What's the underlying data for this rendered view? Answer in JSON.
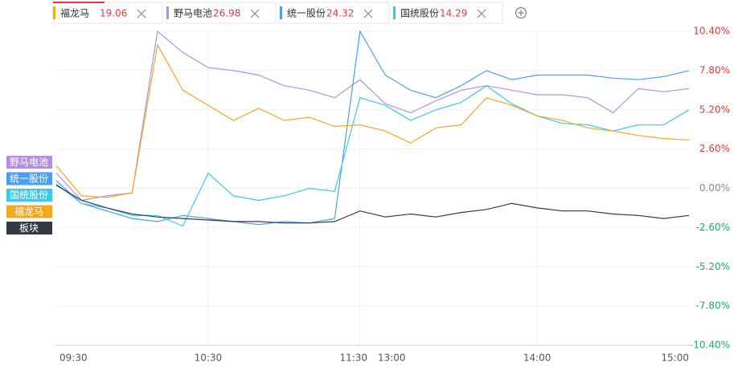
{
  "chart_data": {
    "type": "line",
    "categories": [
      "09:30",
      null,
      null,
      null,
      null,
      null,
      "10:30",
      null,
      null,
      null,
      null,
      null,
      "11:30",
      "13:00",
      null,
      null,
      null,
      null,
      null,
      "14:00",
      null,
      null,
      null,
      null,
      null,
      "15:00"
    ],
    "series": [
      {
        "name": "野马电池",
        "color": "#b48fe0",
        "price": 26.98,
        "values": [
          1.0,
          -0.8,
          -0.5,
          -0.3,
          10.4,
          9.0,
          8.0,
          7.8,
          7.5,
          6.8,
          6.5,
          6.0,
          7.2,
          5.6,
          5.0,
          5.8,
          6.5,
          6.8,
          6.5,
          6.2,
          6.2,
          6.0,
          5.0,
          6.6,
          6.4,
          6.6
        ]
      },
      {
        "name": "统一股份",
        "color": "#4a9ff5",
        "price": 24.32,
        "values": [
          0.5,
          -1.0,
          -1.5,
          -2.0,
          -2.2,
          -1.8,
          -2.0,
          -2.2,
          -2.4,
          -2.2,
          -2.3,
          -2.0,
          10.4,
          7.5,
          6.5,
          6.0,
          6.8,
          7.8,
          7.2,
          7.5,
          7.5,
          7.5,
          7.3,
          7.2,
          7.4,
          7.8
        ]
      },
      {
        "name": "国统股份",
        "color": "#3dc8e6",
        "price": 14.29,
        "values": [
          0.3,
          -1.0,
          -1.3,
          -1.8,
          -1.8,
          -2.5,
          1.0,
          -0.5,
          -0.8,
          -0.5,
          0.0,
          -0.2,
          6.0,
          5.5,
          4.5,
          5.2,
          5.7,
          6.8,
          5.6,
          4.8,
          4.3,
          4.2,
          3.8,
          4.2,
          4.2,
          5.2
        ]
      },
      {
        "name": "福龙马",
        "color": "#f5a623",
        "price": 19.06,
        "values": [
          1.5,
          -0.5,
          -0.6,
          -0.3,
          9.5,
          6.5,
          5.5,
          4.5,
          5.3,
          4.5,
          4.7,
          4.1,
          4.2,
          3.8,
          3.0,
          4.0,
          4.2,
          6.0,
          5.5,
          4.8,
          4.5,
          4.0,
          3.8,
          3.5,
          3.3,
          3.2
        ]
      },
      {
        "name": "板块",
        "color": "#333a44",
        "values": [
          0.2,
          -0.8,
          -1.3,
          -1.7,
          -1.9,
          -2.0,
          -2.1,
          -2.2,
          -2.2,
          -2.3,
          -2.3,
          -2.2,
          -1.5,
          -1.9,
          -1.7,
          -1.9,
          -1.6,
          -1.4,
          -1.0,
          -1.3,
          -1.5,
          -1.5,
          -1.7,
          -1.8,
          -2.0,
          -1.8
        ]
      }
    ],
    "ylim": [
      -10.4,
      10.4
    ],
    "yticks": [
      {
        "value": 10.4,
        "label": "10.40%"
      },
      {
        "value": 7.8,
        "label": "7.80%"
      },
      {
        "value": 5.2,
        "label": "5.20%"
      },
      {
        "value": 2.6,
        "label": "2.60%"
      },
      {
        "value": 0,
        "label": "0.00%"
      },
      {
        "value": -2.6,
        "label": "-2.60%"
      },
      {
        "value": -5.2,
        "label": "-5.20%"
      },
      {
        "value": -7.8,
        "label": "-7.80%"
      },
      {
        "value": -10.4,
        "label": "-10.40%"
      }
    ],
    "tab_order": [
      3,
      0,
      1,
      2
    ],
    "grid": true
  }
}
